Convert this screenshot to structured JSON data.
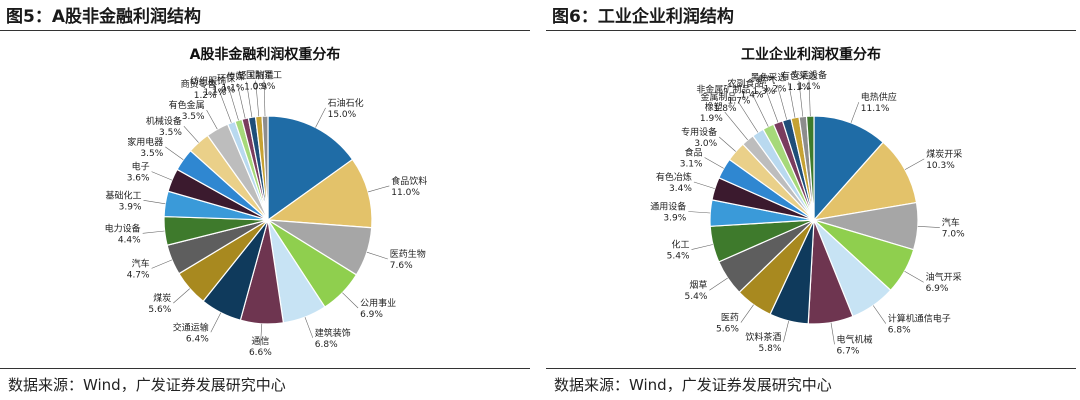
{
  "panels": [
    {
      "figure_title": "图5：A股非金融利润结构",
      "source": "数据来源：Wind，广发证券发展研究中心",
      "chart_data": {
        "type": "pie",
        "title": "A股非金融利润权重分布",
        "slices": [
          {
            "label": "石油石化",
            "value": 15.0,
            "value_label": "15.0%",
            "color": "#1f6ca6"
          },
          {
            "label": "食品饮料",
            "value": 11.0,
            "value_label": "11.0%",
            "color": "#e3c26a"
          },
          {
            "label": "医药生物",
            "value": 7.6,
            "value_label": "7.6%",
            "color": "#a6a6a6"
          },
          {
            "label": "公用事业",
            "value": 6.9,
            "value_label": "6.9%",
            "color": "#8fcf4e"
          },
          {
            "label": "建筑装饰",
            "value": 6.8,
            "value_label": "6.8%",
            "color": "#c7e3f4"
          },
          {
            "label": "通信",
            "value": 6.6,
            "value_label": "6.6%",
            "color": "#6e3550"
          },
          {
            "label": "交通运输",
            "value": 6.4,
            "value_label": "6.4%",
            "color": "#0f3a5c"
          },
          {
            "label": "煤炭",
            "value": 5.6,
            "value_label": "5.6%",
            "color": "#a8891f"
          },
          {
            "label": "汽车",
            "value": 4.7,
            "value_label": "4.7%",
            "color": "#5e5e5e"
          },
          {
            "label": "电力设备",
            "value": 4.4,
            "value_label": "4.4%",
            "color": "#3e7a2c"
          },
          {
            "label": "基础化工",
            "value": 3.9,
            "value_label": "3.9%",
            "color": "#3a9ad9"
          },
          {
            "label": "电子",
            "value": 3.6,
            "value_label": "3.6%",
            "color": "#3b1a2e"
          },
          {
            "label": "家用电器",
            "value": 3.5,
            "value_label": "3.5%",
            "color": "#2f87d1"
          },
          {
            "label": "机械设备",
            "value": 3.5,
            "value_label": "3.5%",
            "color": "#ead089"
          },
          {
            "label": "有色金属",
            "value": 3.5,
            "value_label": "3.5%",
            "color": "#bdbdbd"
          },
          {
            "label": "商贸零售",
            "value": 1.2,
            "value_label": "1.2%",
            "color": "#b9d9ef"
          },
          {
            "label": "纺织服饰",
            "value": 1.1,
            "value_label": "1.1%",
            "color": "#a6d97a"
          },
          {
            "label": "环保",
            "value": 1.0,
            "value_label": "1.0%",
            "color": "#7a3c5e"
          },
          {
            "label": "传媒",
            "value": 1.1,
            "value_label": "1.1%",
            "color": "#1f4e79"
          },
          {
            "label": "轻工制造",
            "value": 1.0,
            "value_label": "1.0%",
            "color": "#c6a233"
          },
          {
            "label": "国防军工",
            "value": 0.9,
            "value_label": "0.9%",
            "color": "#8d8d8d"
          }
        ]
      }
    },
    {
      "figure_title": "图6：工业企业利润结构",
      "source": "数据来源：Wind，广发证券发展研究中心",
      "chart_data": {
        "type": "pie",
        "title": "工业企业利润权重分布",
        "slices": [
          {
            "label": "电热供应",
            "value": 11.1,
            "value_label": "11.1%",
            "color": "#1f6ca6"
          },
          {
            "label": "煤炭开采",
            "value": 10.3,
            "value_label": "10.3%",
            "color": "#e3c26a"
          },
          {
            "label": "汽车",
            "value": 7.0,
            "value_label": "7.0%",
            "color": "#a6a6a6"
          },
          {
            "label": "油气开采",
            "value": 6.9,
            "value_label": "6.9%",
            "color": "#8fcf4e"
          },
          {
            "label": "计算机通信电子",
            "value": 6.8,
            "value_label": "6.8%",
            "color": "#c7e3f4"
          },
          {
            "label": "电气机械",
            "value": 6.7,
            "value_label": "6.7%",
            "color": "#6e3550"
          },
          {
            "label": "饮料茶酒",
            "value": 5.8,
            "value_label": "5.8%",
            "color": "#0f3a5c"
          },
          {
            "label": "医药",
            "value": 5.6,
            "value_label": "5.6%",
            "color": "#a8891f"
          },
          {
            "label": "烟草",
            "value": 5.4,
            "value_label": "5.4%",
            "color": "#5e5e5e"
          },
          {
            "label": "化工",
            "value": 5.4,
            "value_label": "5.4%",
            "color": "#3e7a2c"
          },
          {
            "label": "通用设备",
            "value": 3.9,
            "value_label": "3.9%",
            "color": "#3a9ad9"
          },
          {
            "label": "有色冶炼",
            "value": 3.4,
            "value_label": "3.4%",
            "color": "#3b1a2e"
          },
          {
            "label": "食品",
            "value": 3.1,
            "value_label": "3.1%",
            "color": "#2f87d1"
          },
          {
            "label": "专用设备",
            "value": 3.0,
            "value_label": "3.0%",
            "color": "#ead089"
          },
          {
            "label": "橡塑",
            "value": 1.9,
            "value_label": "1.9%",
            "color": "#bdbdbd"
          },
          {
            "label": "金属制品",
            "value": 1.8,
            "value_label": "1.8%",
            "color": "#b9d9ef"
          },
          {
            "label": "非金属矿制品",
            "value": 1.7,
            "value_label": "1.7%",
            "color": "#a6d97a"
          },
          {
            "label": "农副食品",
            "value": 1.4,
            "value_label": "1.4%",
            "color": "#7a3c5e"
          },
          {
            "label": "燃气",
            "value": 1.3,
            "value_label": "1.3%",
            "color": "#1f4e79"
          },
          {
            "label": "黑色采选",
            "value": 1.2,
            "value_label": "1.2%",
            "color": "#c6a233"
          },
          {
            "label": "有色采选",
            "value": 1.1,
            "value_label": "1.1%",
            "color": "#8d8d8d"
          },
          {
            "label": "交运设备",
            "value": 1.1,
            "value_label": "1.1%",
            "color": "#3e7a2c"
          }
        ]
      }
    }
  ]
}
